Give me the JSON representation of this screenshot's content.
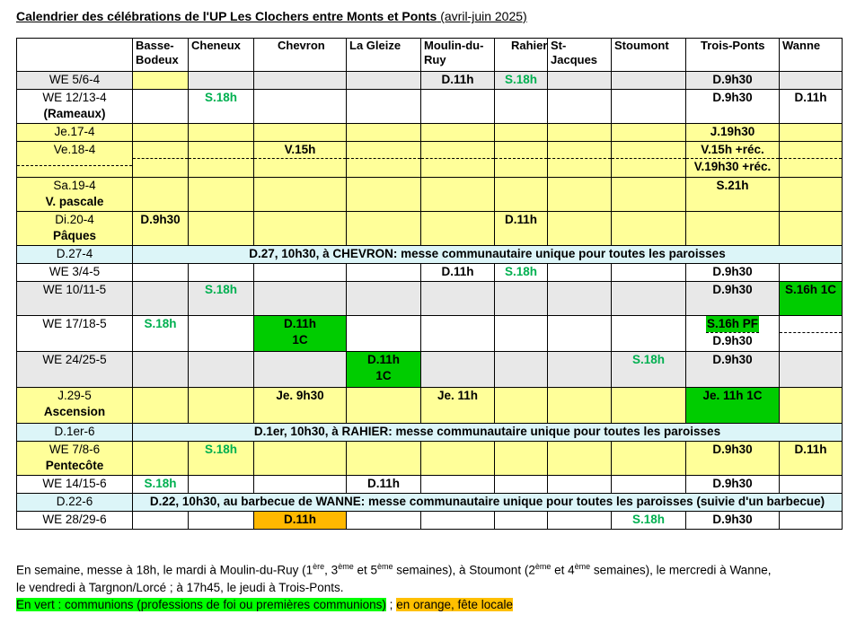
{
  "title": {
    "bold": "Calendrier des célébrations de l'UP Les Clochers entre Monts et Ponts",
    "sub": " (avril-juin 2025)"
  },
  "columns": [
    "Basse-Bodeux",
    "Cheneux",
    "Chevron",
    "La Gleize",
    "Moulin-du-Ruy",
    "Rahier",
    "St-Jacques",
    "Stoumont",
    "Trois-Ponts",
    "Wanne"
  ],
  "rows": {
    "r1": {
      "label": "WE 5/6-4",
      "moulin": "D.11h",
      "rahier": "S.18h",
      "tp": "D.9h30"
    },
    "r2": {
      "label": "WE 12/13-4",
      "label2": "(Rameaux)",
      "cheneux": "S.18h",
      "tp": "D.9h30",
      "wanne": "D.11h"
    },
    "r3": {
      "label": "Je.17-4",
      "tp": "J.19h30"
    },
    "r4": {
      "label": "Ve.18-4",
      "chevron": "V.15h",
      "tp1": "V.15h +réc.",
      "tp2": "V.19h30 +réc."
    },
    "r5": {
      "label": "Sa.19-4",
      "label2": "V. pascale",
      "tp": "S.21h"
    },
    "r6": {
      "label": "Di.20-4",
      "label2": "Pâques",
      "basse": "D.9h30",
      "rahier": "D.11h"
    },
    "r7": {
      "label": "D.27-4",
      "banner": "D.27, 10h30, à CHEVRON: messe communautaire unique pour toutes les paroisses"
    },
    "r8": {
      "label": "WE 3/4-5",
      "moulin": "D.11h",
      "rahier": "S.18h",
      "tp": "D.9h30"
    },
    "r9": {
      "label": "WE 10/11-5",
      "cheneux": "S.18h",
      "tp": "D.9h30",
      "wanne": "S.16h 1C"
    },
    "r10": {
      "label": "WE 17/18-5",
      "basse": "S.18h",
      "chevron1": "D.11h",
      "chevron2": "1C",
      "tp1": "S.16h PF",
      "tp2": "D.9h30"
    },
    "r11": {
      "label": "WE 24/25-5",
      "gleize1": "D.11h",
      "gleize2": "1C",
      "stoumont": "S.18h",
      "tp": "D.9h30"
    },
    "r12": {
      "label": "J.29-5",
      "label2": "Ascension",
      "chevron": "Je. 9h30",
      "moulin": "Je. 11h",
      "tp": "Je. 11h 1C"
    },
    "r13": {
      "label": "D.1er-6",
      "banner": "D.1er, 10h30, à RAHIER: messe communautaire unique pour toutes les paroisses"
    },
    "r14": {
      "label": "WE 7/8-6",
      "label2": "Pentecôte",
      "cheneux": "S.18h",
      "tp": "D.9h30",
      "wanne": "D.11h"
    },
    "r15": {
      "label": "WE 14/15-6",
      "basse": "S.18h",
      "gleize": "D.11h",
      "tp": "D.9h30"
    },
    "r16": {
      "label": "D.22-6",
      "banner": "D.22, 10h30, au barbecue de WANNE: messe communautaire unique pour toutes les paroisses (suivie d'un barbecue)"
    },
    "r17": {
      "label": "WE 28/29-6",
      "chevron": "D.11h",
      "stoumont": "S.18h",
      "tp": "D.9h30"
    }
  },
  "notes": {
    "a": "En semaine, messe à 18h, le mardi à Moulin-du-Ruy (1",
    "sup1": "ère",
    "b": ", 3",
    "sup2": "ème",
    "c": " et 5",
    "sup3": "ème",
    "d": " semaines), à Stoumont (2",
    "sup4": "ème",
    "e": " et 4",
    "sup5": "ème",
    "f": " semaines), le mercredi à Wanne,",
    "line2": "le vendredi à Targnon/Lorcé ; à 17h45, le jeudi à Trois-Ponts.",
    "green_label": "En vert : communions (professions de foi ou premières communions)",
    "sep": " ; ",
    "orange_label": "en orange, fête locale"
  }
}
